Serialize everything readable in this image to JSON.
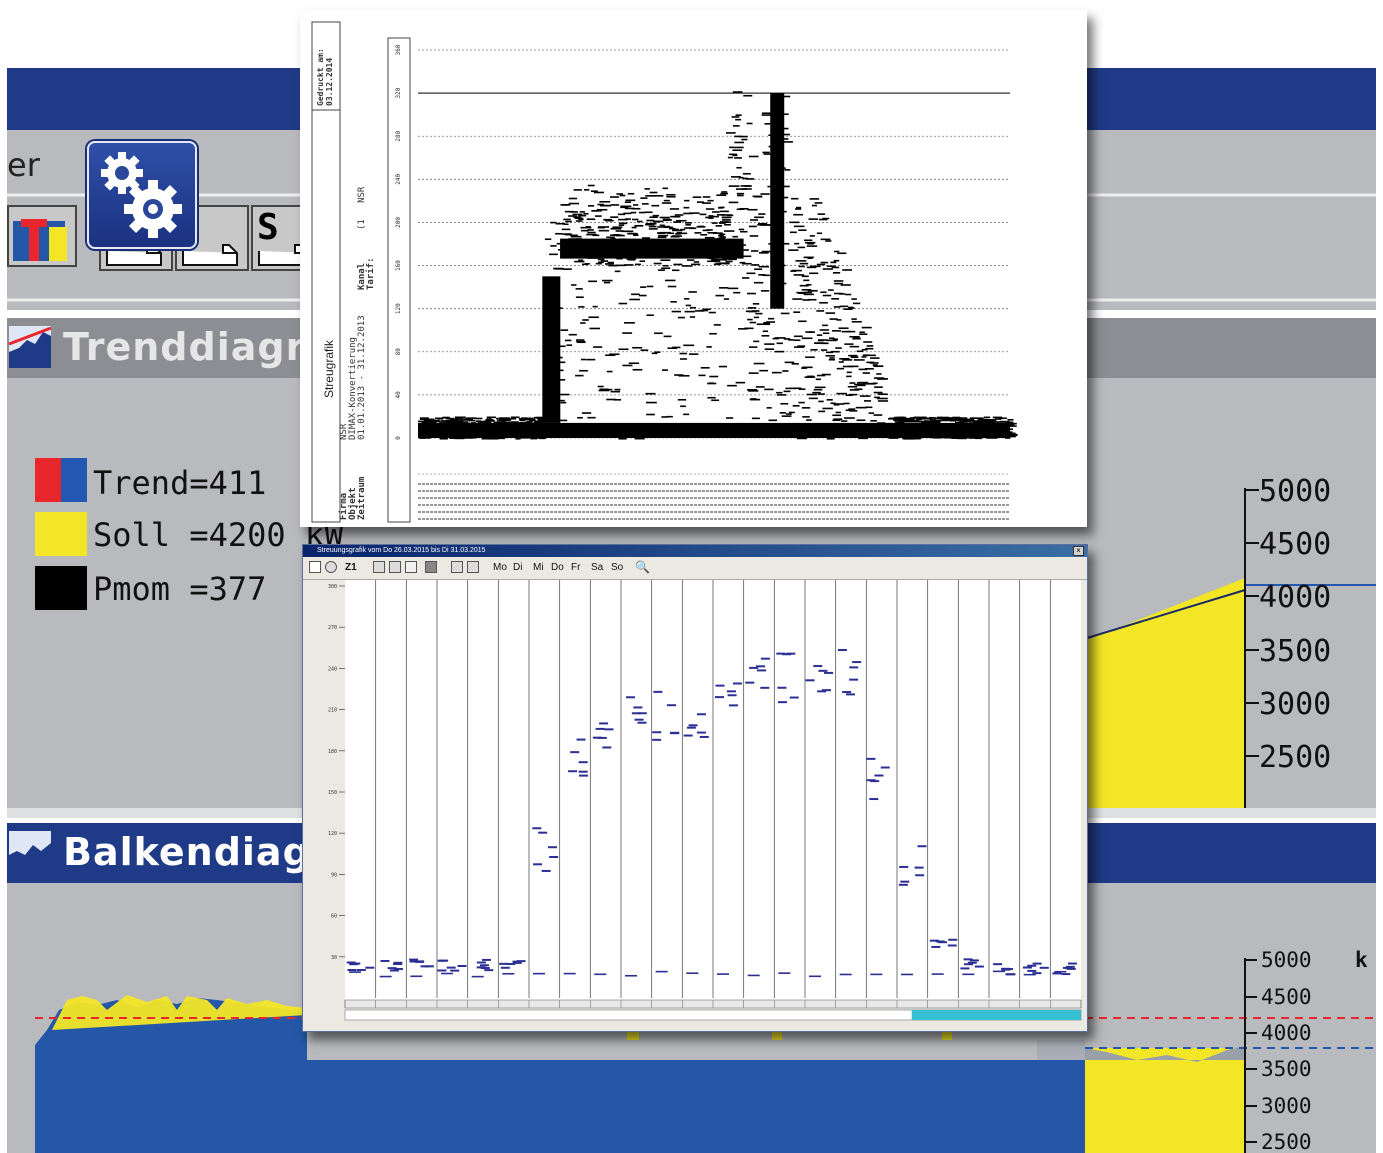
{
  "app": {
    "menu_fragment": "er",
    "toolbar": {
      "s_button_label": "S"
    },
    "trend_panel": {
      "title": "Trenddiagra",
      "legend": [
        {
          "text": "Trend=411",
          "colors": [
            "#e8262c",
            "#2457b3"
          ]
        },
        {
          "text": "Soll =4200  kW",
          "colors": [
            "#f2e52a"
          ]
        },
        {
          "text": "Pmom =377",
          "colors": [
            "#000000"
          ]
        }
      ],
      "y_ticks": [
        "5000",
        "4500",
        "4000",
        "3500",
        "3000",
        "2500"
      ]
    },
    "bar_panel": {
      "title": "Balkendiagra",
      "y_ticks": [
        "5000",
        "4500",
        "4000",
        "3500",
        "3000",
        "2500"
      ],
      "unit_fragment": "k"
    },
    "colors": {
      "blue_bar": "#1f3b87",
      "grey": "#b9babd",
      "fill_blue": "#2457a8",
      "fill_yellow": "#f3e626",
      "red_line": "#e8262c"
    }
  },
  "gear_icon": "gears-icon",
  "paper": {
    "title": "Streugrafik",
    "printed": "Gedruckt am:\n03.12.2014",
    "meta_labels": "Firma\nObjekt\nZeitraum",
    "meta_values": "NSR\nDIMAX-Konvertierung\n01.01.2013 - 31.12.2013",
    "channel_labels": "Kanal\nTarif:",
    "channel_values": "(1   NSR",
    "chart_data": {
      "type": "scatter",
      "title": "Streugrafik",
      "y_ticks": [
        "360",
        "320",
        "280",
        "240",
        "200",
        "160",
        "120",
        "80",
        "40",
        "0"
      ],
      "ylim": [
        0,
        360
      ],
      "limit_line": 320
    }
  },
  "window": {
    "title": "Streuungsgrafik vom Do 26.03.2015 bis Di 31.03.2015",
    "toolbar": [
      "Z1",
      "Mo",
      "Di",
      "Mi",
      "Do",
      "Fr",
      "Sa",
      "So"
    ],
    "chart_data": {
      "type": "scatter",
      "y_ticks": [
        "300",
        "270",
        "240",
        "210",
        "180",
        "150",
        "120",
        "90",
        "60",
        "30"
      ],
      "ylim": [
        0,
        300
      ]
    }
  }
}
